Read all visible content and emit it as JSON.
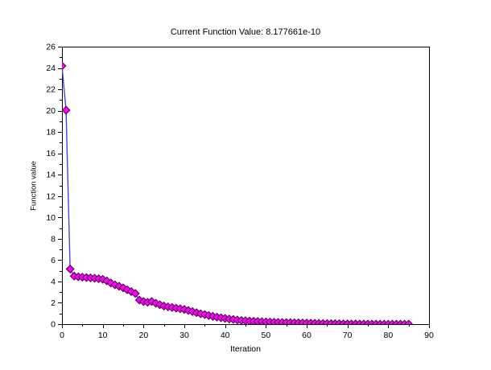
{
  "figure": {
    "background": "#ffffff"
  },
  "chart_data": {
    "type": "line",
    "title": "Current Function Value: 8.177661e-10",
    "current_function_value": 8.177661e-10,
    "xlabel": "Iteration",
    "ylabel": "Function value",
    "xlim": [
      0,
      90
    ],
    "ylim": [
      0,
      26
    ],
    "x_major_ticks": [
      0,
      10,
      20,
      30,
      40,
      50,
      60,
      70,
      80,
      90
    ],
    "x_minor_ticks": [
      5,
      15,
      25,
      35,
      45,
      55,
      65,
      75,
      85
    ],
    "y_major_ticks": [
      0,
      2,
      4,
      6,
      8,
      10,
      12,
      14,
      16,
      18,
      20,
      22,
      24,
      26
    ],
    "y_minor_ticks": [
      1,
      3,
      5,
      7,
      9,
      11,
      13,
      15,
      17,
      19,
      21,
      23,
      25
    ],
    "grid": false,
    "legend": "none",
    "marker": "diamond",
    "marker_size": 9.6,
    "colors": {
      "line": "#4343dd",
      "marker_fill": "#ff00ff",
      "marker_edge": "#45003f",
      "axis": "#000000",
      "text": "#000000"
    },
    "series": [
      {
        "name": "Current function value",
        "x": [
          0,
          1,
          2,
          3,
          4,
          5,
          6,
          7,
          8,
          9,
          10,
          11,
          12,
          13,
          14,
          15,
          16,
          17,
          18,
          19,
          20,
          21,
          22,
          23,
          24,
          25,
          26,
          27,
          28,
          29,
          30,
          31,
          32,
          33,
          34,
          35,
          36,
          37,
          38,
          39,
          40,
          41,
          42,
          43,
          44,
          45,
          46,
          47,
          48,
          49,
          50,
          51,
          52,
          53,
          54,
          55,
          56,
          57,
          58,
          59,
          60,
          61,
          62,
          63,
          64,
          65,
          66,
          67,
          68,
          69,
          70,
          71,
          72,
          73,
          74,
          75,
          76,
          77,
          78,
          79,
          80,
          81,
          82,
          83,
          84,
          85
        ],
        "y": [
          24.2,
          20.05,
          5.16,
          4.5,
          4.44,
          4.4,
          4.36,
          4.33,
          4.3,
          4.26,
          4.2,
          4.05,
          3.85,
          3.68,
          3.55,
          3.4,
          3.22,
          3.05,
          2.87,
          2.25,
          2.12,
          2.05,
          2.12,
          1.96,
          1.82,
          1.7,
          1.62,
          1.56,
          1.5,
          1.44,
          1.38,
          1.28,
          1.18,
          1.07,
          0.97,
          0.9,
          0.81,
          0.73,
          0.66,
          0.6,
          0.54,
          0.48,
          0.44,
          0.39,
          0.35,
          0.32,
          0.29,
          0.27,
          0.25,
          0.23,
          0.21,
          0.2,
          0.18,
          0.17,
          0.16,
          0.15,
          0.14,
          0.13,
          0.12,
          0.11,
          0.1,
          0.09,
          0.082,
          0.074,
          0.066,
          0.058,
          0.05,
          0.043,
          0.036,
          0.03,
          0.025,
          0.02,
          0.016,
          0.012,
          0.009,
          0.0065,
          0.0045,
          0.003,
          0.0018,
          0.001,
          0.0005,
          0.00022,
          8e-05,
          2e-05,
          4e-06,
          8.177661e-10
        ]
      }
    ]
  }
}
